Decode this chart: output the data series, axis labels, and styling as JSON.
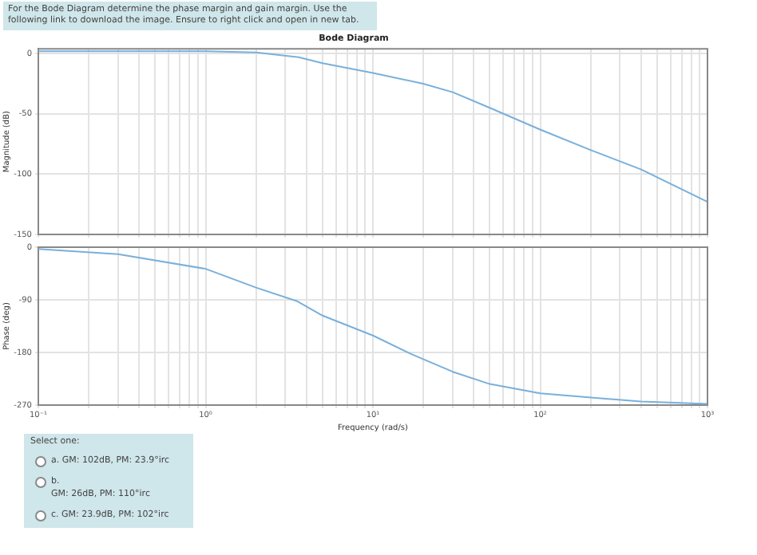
{
  "chart_data": [
    {
      "type": "line",
      "title": "Bode Diagram",
      "ylabel": "Magnitude (dB)",
      "annotations": [
        "For the Bode Diagram determine the phase margin and gain margin. Use the following link to download the image. Ensure to right click and open in new tab."
      ],
      "series": [
        {
          "color": "#79b0db",
          "x": [
            0.1,
            0.3,
            1,
            2,
            3.6,
            5,
            10,
            20,
            30,
            50,
            100,
            200,
            400,
            1000
          ],
          "values": [
            2,
            2,
            2,
            1,
            -3,
            -8,
            -16,
            -25,
            -32,
            -45,
            -63,
            -80,
            -96,
            -123
          ]
        }
      ],
      "xlim": [
        0.1,
        1000
      ],
      "xticks": [
        {
          "value": 0.1,
          "label": null
        },
        {
          "value": 0.2,
          "label": null
        },
        {
          "value": 0.3,
          "label": null
        },
        {
          "value": 0.4,
          "label": null
        },
        {
          "value": 0.5,
          "label": null
        },
        {
          "value": 0.6,
          "label": null
        },
        {
          "value": 0.7,
          "label": null
        },
        {
          "value": 0.8,
          "label": null
        },
        {
          "value": 0.9,
          "label": null
        },
        {
          "value": 1,
          "label": null
        },
        {
          "value": 2,
          "label": null
        },
        {
          "value": 3,
          "label": null
        },
        {
          "value": 4,
          "label": null
        },
        {
          "value": 5,
          "label": null
        },
        {
          "value": 6,
          "label": null
        },
        {
          "value": 7,
          "label": null
        },
        {
          "value": 8,
          "label": null
        },
        {
          "value": 9,
          "label": null
        },
        {
          "value": 10,
          "label": null
        },
        {
          "value": 20,
          "label": null
        },
        {
          "value": 30,
          "label": null
        },
        {
          "value": 40,
          "label": null
        },
        {
          "value": 50,
          "label": null
        },
        {
          "value": 60,
          "label": null
        },
        {
          "value": 70,
          "label": null
        },
        {
          "value": 80,
          "label": null
        },
        {
          "value": 90,
          "label": null
        },
        {
          "value": 100,
          "label": null
        },
        {
          "value": 200,
          "label": null
        },
        {
          "value": 300,
          "label": null
        },
        {
          "value": 400,
          "label": null
        },
        {
          "value": 500,
          "label": null
        },
        {
          "value": 600,
          "label": null
        },
        {
          "value": 700,
          "label": null
        },
        {
          "value": 800,
          "label": null
        },
        {
          "value": 900,
          "label": null
        },
        {
          "value": 1000,
          "label": null
        }
      ],
      "ylim": [
        -150,
        4
      ],
      "yticks": [
        0,
        -50,
        -100,
        -150
      ],
      "log": "x",
      "grid": true,
      "marker": "none",
      "legend": false,
      "tick_labels": "y"
    },
    {
      "type": "line",
      "ylabel": "Phase (deg)",
      "xlabel": "Frequency (rad/s)",
      "series": [
        {
          "color": "#79b0db",
          "x": [
            0.1,
            0.3,
            1,
            2,
            3.5,
            5,
            10,
            17,
            30,
            50,
            100,
            400,
            1000
          ],
          "values": [
            -3,
            -12,
            -37,
            -69,
            -92,
            -117,
            -151,
            -183,
            -213,
            -234,
            -250,
            -264,
            -268
          ]
        }
      ],
      "xlim": [
        0.1,
        1000
      ],
      "xticks": [
        {
          "value": 0.1,
          "label": "10⁻¹"
        },
        {
          "value": 0.2,
          "label": null
        },
        {
          "value": 0.3,
          "label": null
        },
        {
          "value": 0.4,
          "label": null
        },
        {
          "value": 0.5,
          "label": null
        },
        {
          "value": 0.6,
          "label": null
        },
        {
          "value": 0.7,
          "label": null
        },
        {
          "value": 0.8,
          "label": null
        },
        {
          "value": 0.9,
          "label": null
        },
        {
          "value": 1,
          "label": "10⁰"
        },
        {
          "value": 2,
          "label": null
        },
        {
          "value": 3,
          "label": null
        },
        {
          "value": 4,
          "label": null
        },
        {
          "value": 5,
          "label": null
        },
        {
          "value": 6,
          "label": null
        },
        {
          "value": 7,
          "label": null
        },
        {
          "value": 8,
          "label": null
        },
        {
          "value": 9,
          "label": null
        },
        {
          "value": 10,
          "label": "10¹"
        },
        {
          "value": 20,
          "label": null
        },
        {
          "value": 30,
          "label": null
        },
        {
          "value": 40,
          "label": null
        },
        {
          "value": 50,
          "label": null
        },
        {
          "value": 60,
          "label": null
        },
        {
          "value": 70,
          "label": null
        },
        {
          "value": 80,
          "label": null
        },
        {
          "value": 90,
          "label": null
        },
        {
          "value": 100,
          "label": "10²"
        },
        {
          "value": 200,
          "label": null
        },
        {
          "value": 300,
          "label": null
        },
        {
          "value": 400,
          "label": null
        },
        {
          "value": 500,
          "label": null
        },
        {
          "value": 600,
          "label": null
        },
        {
          "value": 700,
          "label": null
        },
        {
          "value": 800,
          "label": null
        },
        {
          "value": 900,
          "label": null
        },
        {
          "value": 1000,
          "label": "10³"
        }
      ],
      "ylim": [
        -270,
        0
      ],
      "yticks": [
        0,
        -90,
        -180,
        -270
      ],
      "log": "x",
      "grid": true,
      "marker": "none",
      "legend": false
    },
    {
      "type": "other",
      "title": "Select one:",
      "annotations": [
        "a. GM: 102dB, PM: 23.9°irc",
        "b.\nGM: 26dB, PM: 110°irc",
        "c. GM: 23.9dB, PM: 102°irc"
      ]
    }
  ]
}
